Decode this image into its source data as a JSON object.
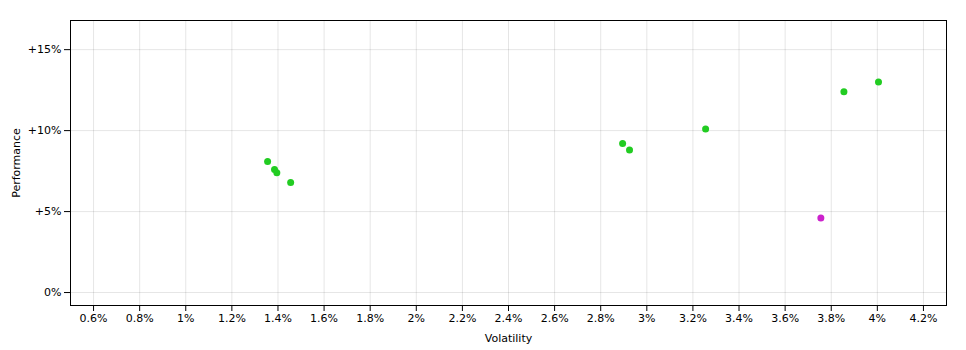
{
  "chart_data": {
    "type": "scatter",
    "xlabel": "Volatility",
    "ylabel": "Performance",
    "xlim": [
      0.005,
      0.043
    ],
    "ylim": [
      -0.008,
      0.168
    ],
    "xticks": [
      {
        "value": 0.006,
        "label": "0.6%"
      },
      {
        "value": 0.008,
        "label": "0.8%"
      },
      {
        "value": 0.01,
        "label": "1%"
      },
      {
        "value": 0.012,
        "label": "1.2%"
      },
      {
        "value": 0.014,
        "label": "1.4%"
      },
      {
        "value": 0.016,
        "label": "1.6%"
      },
      {
        "value": 0.018,
        "label": "1.8%"
      },
      {
        "value": 0.02,
        "label": "2%"
      },
      {
        "value": 0.022,
        "label": "2.2%"
      },
      {
        "value": 0.024,
        "label": "2.4%"
      },
      {
        "value": 0.026,
        "label": "2.6%"
      },
      {
        "value": 0.028,
        "label": "2.8%"
      },
      {
        "value": 0.03,
        "label": "3%"
      },
      {
        "value": 0.032,
        "label": "3.2%"
      },
      {
        "value": 0.034,
        "label": "3.4%"
      },
      {
        "value": 0.036,
        "label": "3.6%"
      },
      {
        "value": 0.038,
        "label": "3.8%"
      },
      {
        "value": 0.04,
        "label": "4%"
      },
      {
        "value": 0.042,
        "label": "4.2%"
      }
    ],
    "yticks": [
      {
        "value": 0.0,
        "label": "0%"
      },
      {
        "value": 0.05,
        "label": "+5%"
      },
      {
        "value": 0.1,
        "label": "+10%"
      },
      {
        "value": 0.15,
        "label": "+15%"
      }
    ],
    "grid": true,
    "series": [
      {
        "color": "#22cc22",
        "x": [
          0.01355,
          0.01385,
          0.01395,
          0.01455,
          0.02895,
          0.02925,
          0.03255,
          0.03855,
          0.04005
        ],
        "values": [
          0.081,
          0.076,
          0.074,
          0.068,
          0.092,
          0.088,
          0.101,
          0.124,
          0.13
        ]
      },
      {
        "color": "#cc22cc",
        "x": [
          0.03755
        ],
        "values": [
          0.046
        ]
      }
    ]
  }
}
